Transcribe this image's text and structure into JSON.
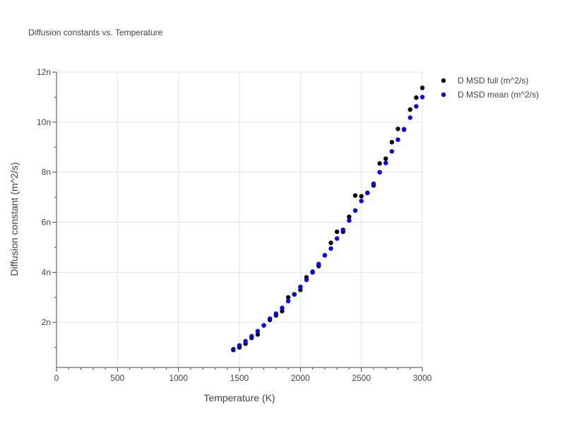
{
  "chart_data": {
    "type": "scatter",
    "title": "Diffusion constants vs. Temperature",
    "xlabel": "Temperature (K)",
    "ylabel": "Diffusion constant (m^2/s)",
    "xlim": [
      0,
      3000
    ],
    "ylim": [
      0.2,
      12
    ],
    "xticks": [
      0,
      500,
      1000,
      1500,
      2000,
      2500,
      3000
    ],
    "xtick_labels": [
      "0",
      "500",
      "1000",
      "1500",
      "2000",
      "2500",
      "3000"
    ],
    "yticks": [
      2,
      4,
      6,
      8,
      10,
      12
    ],
    "ytick_labels": [
      "2n",
      "4n",
      "6n",
      "8n",
      "10n",
      "12n"
    ],
    "grid": true,
    "legend_position": "top-right",
    "series": [
      {
        "name": "D MSD full (m^2/s)",
        "color": "#000000",
        "x": [
          1450,
          1500,
          1550,
          1600,
          1650,
          1700,
          1750,
          1800,
          1850,
          1900,
          1950,
          2000,
          2050,
          2100,
          2150,
          2200,
          2250,
          2300,
          2350,
          2400,
          2450,
          2500,
          2550,
          2600,
          2650,
          2700,
          2750,
          2800,
          2850,
          2900,
          2950,
          3000
        ],
        "y": [
          0.9,
          1.0,
          1.15,
          1.38,
          1.52,
          1.88,
          2.1,
          2.28,
          2.45,
          3.0,
          3.12,
          3.3,
          3.8,
          4.0,
          4.25,
          4.68,
          5.18,
          5.62,
          5.62,
          6.22,
          7.07,
          7.04,
          7.17,
          7.47,
          8.35,
          8.54,
          9.2,
          9.73,
          9.7,
          10.5,
          10.98,
          11.37
        ]
      },
      {
        "name": "D MSD mean (m^2/s)",
        "color": "#0000ff",
        "x": [
          1450,
          1500,
          1550,
          1600,
          1650,
          1700,
          1750,
          1800,
          1850,
          1900,
          1950,
          2000,
          2050,
          2100,
          2150,
          2200,
          2250,
          2300,
          2350,
          2400,
          2450,
          2500,
          2550,
          2600,
          2650,
          2700,
          2750,
          2800,
          2850,
          2900,
          2950,
          3000
        ],
        "y": [
          0.93,
          1.08,
          1.25,
          1.45,
          1.65,
          1.88,
          2.15,
          2.35,
          2.58,
          2.85,
          3.12,
          3.42,
          3.7,
          4.03,
          4.33,
          4.68,
          4.95,
          5.35,
          5.7,
          6.07,
          6.47,
          6.85,
          7.18,
          7.54,
          8.0,
          8.37,
          8.83,
          9.3,
          9.72,
          10.18,
          10.63,
          11.0
        ]
      }
    ]
  }
}
